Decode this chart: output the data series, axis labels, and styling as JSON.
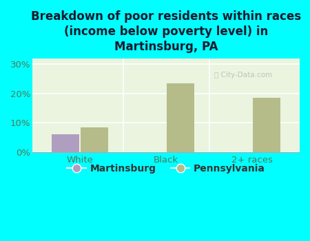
{
  "title": "Breakdown of poor residents within races\n(income below poverty level) in\nMartinsburg, PA",
  "categories": [
    "White",
    "Black",
    "2+ races"
  ],
  "martinsburg_values": [
    6.0,
    0.0,
    0.0
  ],
  "pennsylvania_values": [
    8.5,
    23.5,
    18.5
  ],
  "martinsburg_color": "#b09ec0",
  "pennsylvania_color": "#b5bc8a",
  "background_color": "#00ffff",
  "plot_bg_color_top": "#e8f5e0",
  "plot_bg_color_bottom": "#f5fdf0",
  "ylim": [
    0,
    32
  ],
  "yticks": [
    0,
    10,
    20,
    30
  ],
  "ytick_labels": [
    "0%",
    "10%",
    "20%",
    "30%"
  ],
  "bar_width": 0.32,
  "legend_labels": [
    "Martinsburg",
    "Pennsylvania"
  ],
  "watermark": "City-Data.com",
  "title_fontsize": 12,
  "tick_fontsize": 9.5,
  "legend_fontsize": 10,
  "title_color": "#1a1a2e"
}
